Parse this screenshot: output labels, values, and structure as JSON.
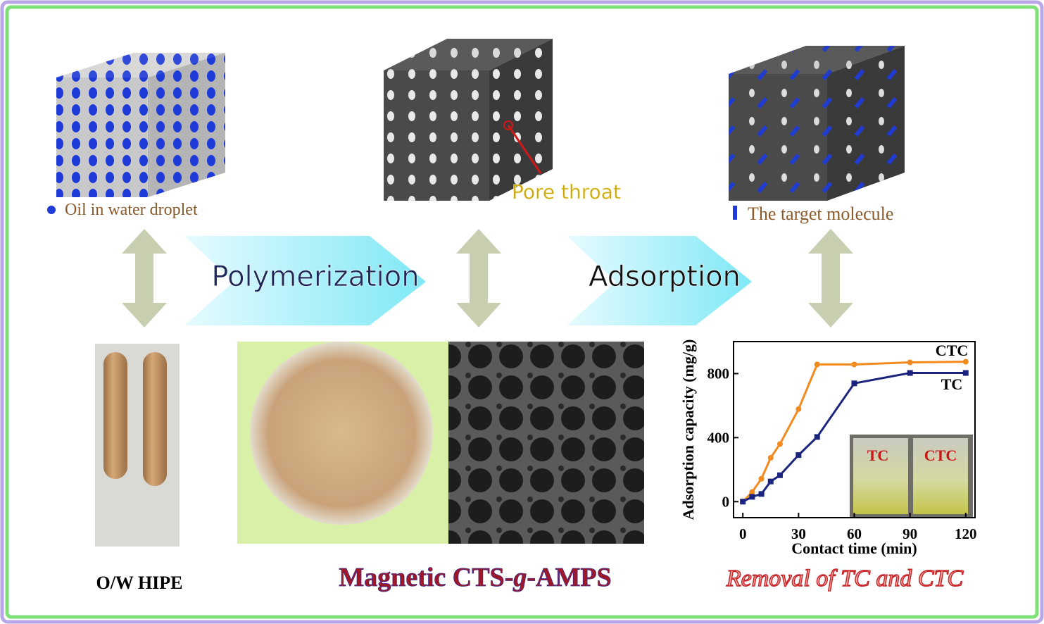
{
  "labels": {
    "oil_droplet": "Oil in water droplet",
    "pore_throat": "Pore throat",
    "target_molecule": "The target molecule",
    "polymerization": "Polymerization",
    "adsorption": "Adsorption",
    "hipe": "O/W HIPE",
    "material": [
      "Magnetic CTS-",
      "g",
      "-AMPS"
    ],
    "removal": "Removal of  TC and CTC"
  },
  "chart_data": {
    "type": "line",
    "xlabel": "Contact time (min)",
    "ylabel": "Adsorption capacity (mg/g)",
    "x": [
      0,
      5,
      10,
      15,
      20,
      30,
      40,
      60,
      90,
      120
    ],
    "xlim": [
      -5,
      125
    ],
    "ylim": [
      -100,
      1000
    ],
    "xticks": [
      0,
      30,
      60,
      90,
      120
    ],
    "yticks": [
      0,
      400,
      800
    ],
    "series": [
      {
        "name": "CTC",
        "color": "#f28a1e",
        "marker": "circle",
        "values": [
          0,
          60,
          143,
          274,
          360,
          578,
          857,
          857,
          870,
          874
        ]
      },
      {
        "name": "TC",
        "color": "#1a237e",
        "marker": "square",
        "values": [
          0,
          30,
          48,
          126,
          165,
          291,
          404,
          739,
          804,
          804
        ]
      }
    ],
    "inset_labels": [
      "TC",
      "CTC"
    ]
  }
}
